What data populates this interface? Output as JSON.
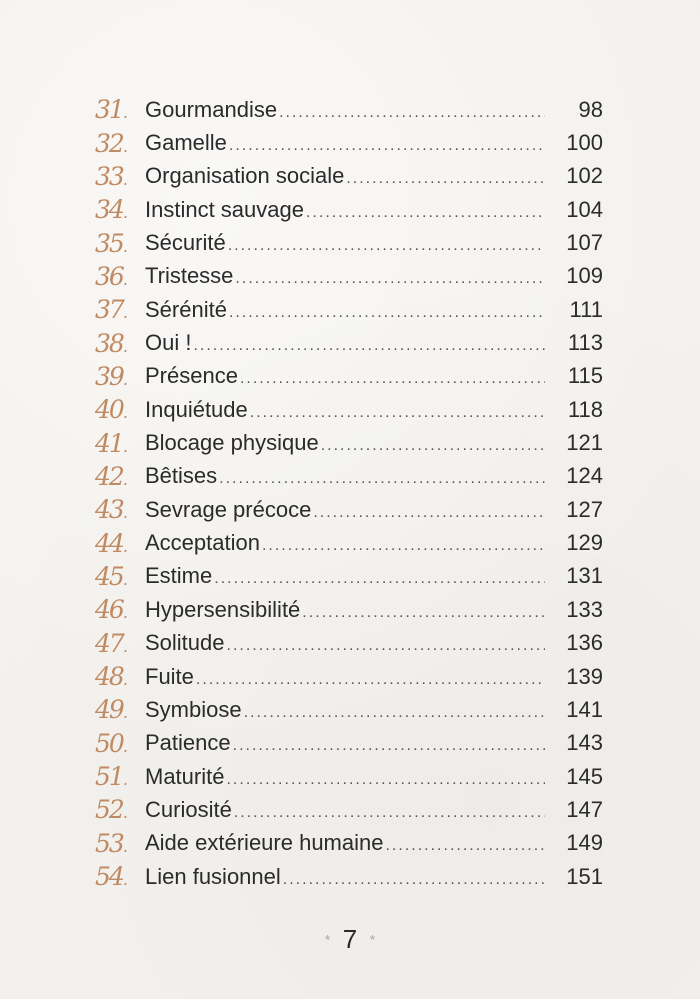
{
  "toc": [
    {
      "n": "31",
      "title": "Gourmandise",
      "page": "98"
    },
    {
      "n": "32",
      "title": "Gamelle",
      "page": "100"
    },
    {
      "n": "33",
      "title": "Organisation sociale",
      "page": "102"
    },
    {
      "n": "34",
      "title": "Instinct sauvage",
      "page": "104"
    },
    {
      "n": "35",
      "title": "Sécurité",
      "page": "107"
    },
    {
      "n": "36",
      "title": "Tristesse",
      "page": "109"
    },
    {
      "n": "37",
      "title": "Sérénité",
      "page": "111"
    },
    {
      "n": "38",
      "title": "Oui !",
      "page": "113"
    },
    {
      "n": "39",
      "title": "Présence",
      "page": "115"
    },
    {
      "n": "40",
      "title": "Inquiétude",
      "page": "118"
    },
    {
      "n": "41",
      "title": "Blocage physique",
      "page": "121"
    },
    {
      "n": "42",
      "title": "Bêtises",
      "page": "124"
    },
    {
      "n": "43",
      "title": "Sevrage précoce",
      "page": "127"
    },
    {
      "n": "44",
      "title": "Acceptation",
      "page": "129"
    },
    {
      "n": "45",
      "title": "Estime",
      "page": "131"
    },
    {
      "n": "46",
      "title": "Hypersensibilité",
      "page": "133"
    },
    {
      "n": "47",
      "title": "Solitude",
      "page": "136"
    },
    {
      "n": "48",
      "title": "Fuite",
      "page": "139"
    },
    {
      "n": "49",
      "title": "Symbiose",
      "page": "141"
    },
    {
      "n": "50",
      "title": "Patience",
      "page": "143"
    },
    {
      "n": "51",
      "title": "Maturité",
      "page": "145"
    },
    {
      "n": "52",
      "title": "Curiosité",
      "page": "147"
    },
    {
      "n": "53",
      "title": "Aide extérieure humaine",
      "page": "149"
    },
    {
      "n": "54",
      "title": "Lien fusionnel",
      "page": "151"
    }
  ],
  "footer": {
    "page_number": "7",
    "ornament": "*"
  },
  "colors": {
    "accent": "#c08a62",
    "text": "#2b2b2b",
    "background": "#f3f1ed"
  }
}
